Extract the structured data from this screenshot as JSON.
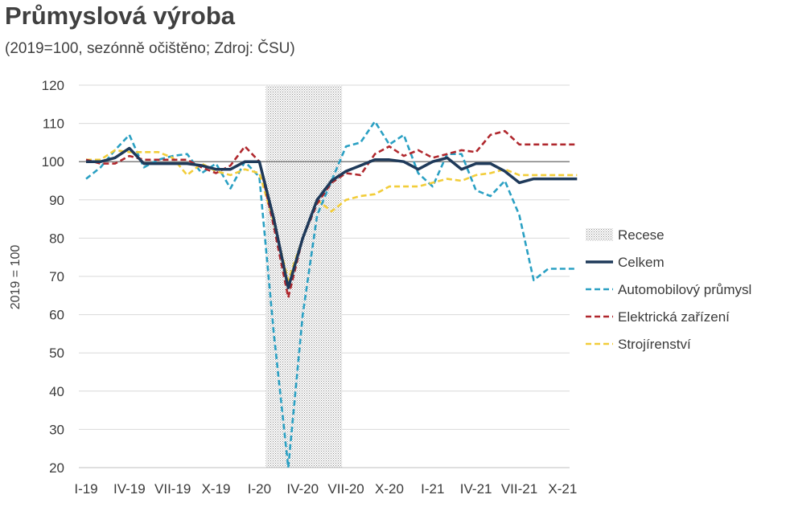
{
  "chart_data": {
    "type": "line",
    "title": "Průmyslová výroba",
    "subtitle": "(2019=100, sezónně očištěno; Zdroj: ČSU)",
    "ylabel": "2019 = 100",
    "xlabel": "",
    "ylim": [
      20,
      120
    ],
    "yticks": [
      20,
      30,
      40,
      50,
      60,
      70,
      80,
      90,
      100,
      110,
      120
    ],
    "grid": "horizontal",
    "legend_position": "right",
    "categories": [
      "I-19",
      "II-19",
      "III-19",
      "IV-19",
      "V-19",
      "VI-19",
      "VII-19",
      "VIII-19",
      "IX-19",
      "X-19",
      "XI-19",
      "XII-19",
      "I-20",
      "II-20",
      "III-20",
      "IV-20",
      "V-20",
      "VI-20",
      "VII-20",
      "VIII-20",
      "IX-20",
      "X-20",
      "XI-20",
      "XII-20",
      "I-21",
      "II-21",
      "III-21",
      "IV-21",
      "V-21",
      "VI-21",
      "VII-21",
      "VIII-21",
      "IX-21",
      "X-21",
      "XI-21"
    ],
    "xtick_labels": [
      "I-19",
      "IV-19",
      "VII-19",
      "X-19",
      "I-20",
      "IV-20",
      "VII-20",
      "X-20",
      "I-21",
      "IV-21",
      "VII-21",
      "X-21"
    ],
    "xtick_indices": [
      0,
      3,
      6,
      9,
      12,
      15,
      18,
      21,
      24,
      27,
      30,
      33
    ],
    "reference_line": 100,
    "recession": {
      "name": "Recese",
      "start": "I-20",
      "end": "VII-20"
    },
    "series": [
      {
        "name": "Celkem",
        "color": "#1f3a5a",
        "dash": "solid",
        "values": [
          100,
          100,
          101,
          103.5,
          99.5,
          99.5,
          99.5,
          99.5,
          99,
          98,
          98,
          100,
          100,
          85,
          67,
          80,
          90,
          95,
          97.5,
          99,
          100.5,
          100.5,
          100,
          98,
          100,
          101,
          98,
          99.5,
          99.5,
          97.5,
          94.5,
          95.5,
          95.5,
          95.5,
          95.5
        ]
      },
      {
        "name": "Automobilový průmysl",
        "color": "#2aa0c3",
        "dash": "dashed",
        "values": [
          95.5,
          98.5,
          103,
          107,
          98.5,
          100.5,
          101.5,
          102,
          97,
          99.5,
          93,
          100,
          96,
          55,
          20,
          60,
          86,
          95,
          104,
          105,
          110.5,
          104.5,
          107,
          97,
          93.5,
          102,
          102,
          92.5,
          91,
          95,
          86,
          69,
          72,
          72,
          72
        ]
      },
      {
        "name": "Elektrická zařízení",
        "color": "#b0282e",
        "dash": "dashed",
        "values": [
          100.5,
          99.5,
          99.5,
          101.5,
          100.5,
          100.5,
          100.5,
          100.5,
          98.5,
          97,
          99,
          104,
          100,
          83,
          64.5,
          80,
          89,
          94.5,
          97,
          96.5,
          102,
          104,
          101.5,
          103,
          101,
          102,
          103,
          102.5,
          107,
          108,
          104.5,
          104.5,
          104.5,
          104.5,
          104.5
        ]
      },
      {
        "name": "Strojírenství",
        "color": "#f2cd3a",
        "dash": "dashed",
        "values": [
          100.5,
          100.5,
          103,
          102.5,
          102.5,
          102.5,
          101,
          96.5,
          99.5,
          97.5,
          96.5,
          98,
          97,
          84,
          69,
          80,
          90,
          87,
          90,
          91,
          91.5,
          93.5,
          93.5,
          93.5,
          94.5,
          95.5,
          95,
          96.5,
          97,
          98,
          96.5,
          96.5,
          96.5,
          96.5,
          96.5
        ]
      }
    ]
  }
}
